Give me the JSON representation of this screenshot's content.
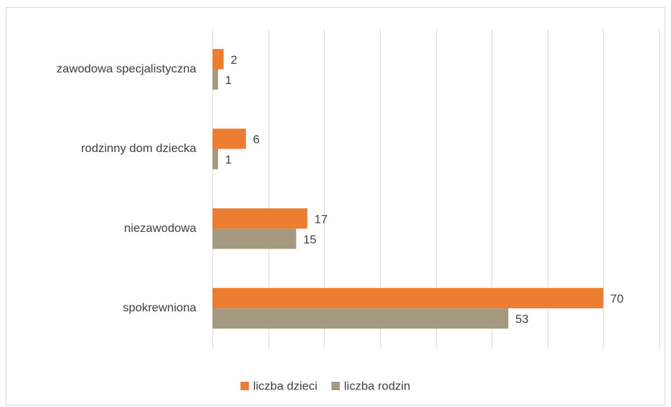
{
  "chart_data": {
    "type": "hbar",
    "categories": [
      "spokrewniona",
      "niezawodowa",
      "rodzinny dom dziecka",
      "zawodowa specjalistyczna"
    ],
    "series": [
      {
        "name": "liczba dzieci",
        "color": "#ed7d31",
        "values": [
          70,
          17,
          6,
          2
        ]
      },
      {
        "name": "liczba rodzin",
        "color": "#a5997f",
        "values": [
          53,
          15,
          1,
          1
        ]
      }
    ],
    "xlim": [
      0,
      80
    ],
    "xticks": [
      0,
      10,
      20,
      30,
      40,
      50,
      60,
      70,
      80
    ],
    "grid": true,
    "legend": "bottom"
  }
}
